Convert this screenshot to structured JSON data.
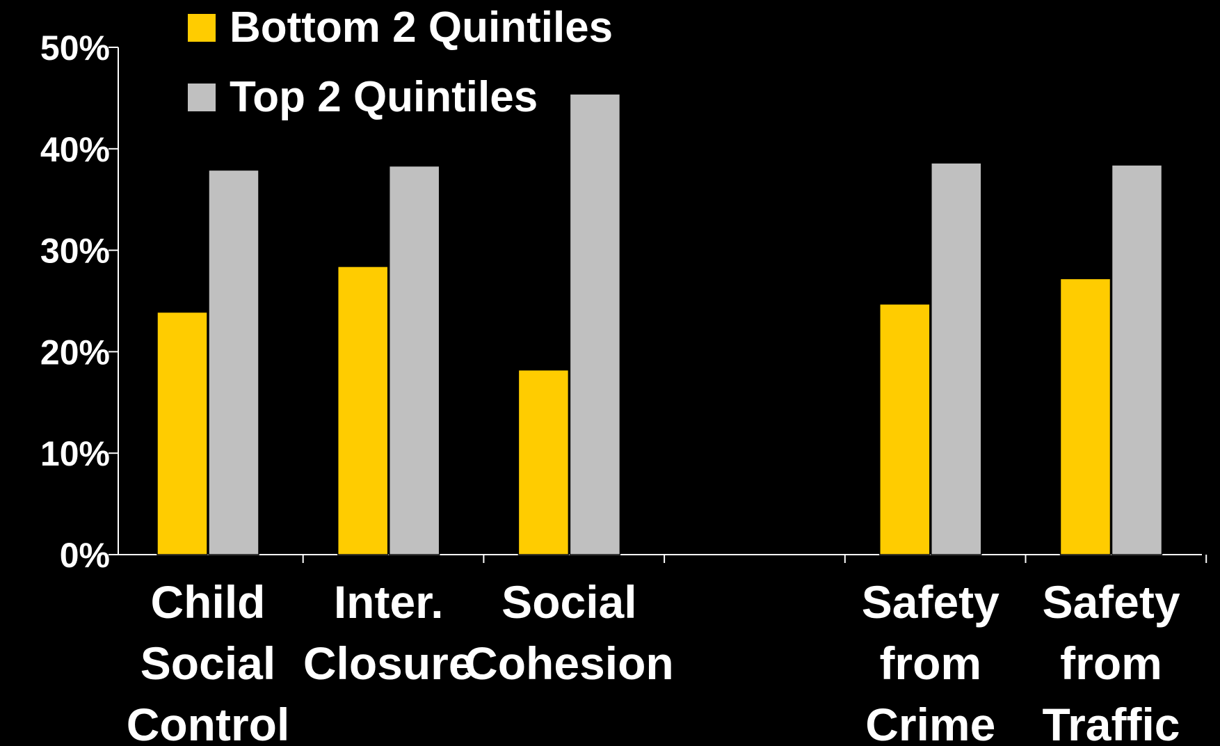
{
  "chart_data": {
    "type": "bar",
    "categories": [
      [
        "Child",
        "Social",
        "Control"
      ],
      [
        "Inter.",
        "Closure"
      ],
      [
        "Social",
        "Cohesion"
      ],
      [],
      [
        "Safety",
        "from",
        "Crime"
      ],
      [
        "Safety",
        "from",
        "Traffic"
      ]
    ],
    "series": [
      {
        "name": "Bottom 2 Quintiles",
        "color": "#FFCC00",
        "values": [
          23.9,
          28.4,
          18.2,
          null,
          24.7,
          27.2
        ]
      },
      {
        "name": "Top 2 Quintiles",
        "color": "#C0C0C0",
        "values": [
          37.9,
          38.3,
          45.4,
          null,
          38.6,
          38.4
        ]
      }
    ],
    "y_ticks": [
      "0%",
      "10%",
      "20%",
      "30%",
      "40%",
      "50%"
    ],
    "ylim": [
      0,
      50
    ],
    "legend_position": "top-left",
    "grid": false
  }
}
